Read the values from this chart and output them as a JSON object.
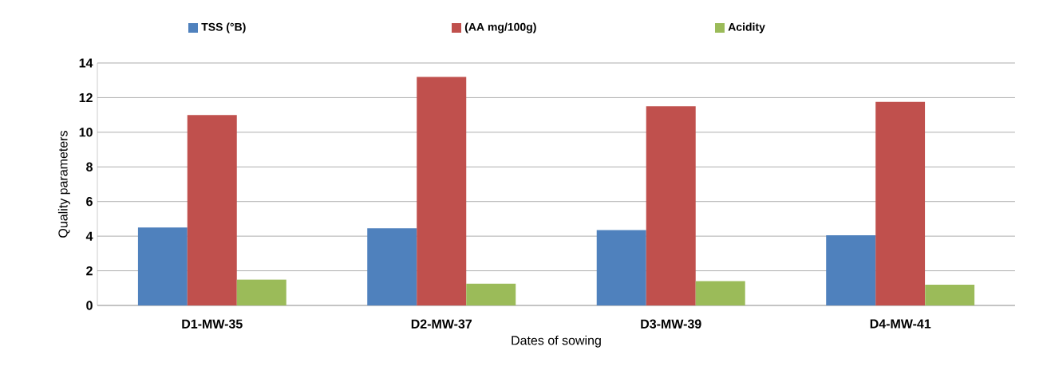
{
  "chart_data": {
    "type": "bar",
    "xlabel": "Dates of sowing",
    "ylabel": "Quality parameters",
    "categories": [
      "D1-MW-35",
      "D2-MW-37",
      "D3-MW-39",
      "D4-MW-41"
    ],
    "series": [
      {
        "name": "TSS (°B)",
        "color": "#4f81bd",
        "values": [
          4.5,
          4.45,
          4.35,
          4.05
        ]
      },
      {
        "name": "(AA mg/100g)",
        "color": "#c0504d",
        "values": [
          11.0,
          13.2,
          11.5,
          11.75
        ]
      },
      {
        "name": "Acidity",
        "color": "#9bbb59",
        "values": [
          1.5,
          1.25,
          1.4,
          1.2
        ]
      }
    ],
    "ylim": [
      0,
      14
    ],
    "yticks": [
      0,
      2,
      4,
      6,
      8,
      10,
      12,
      14
    ],
    "grid": "y",
    "legend": "top"
  }
}
